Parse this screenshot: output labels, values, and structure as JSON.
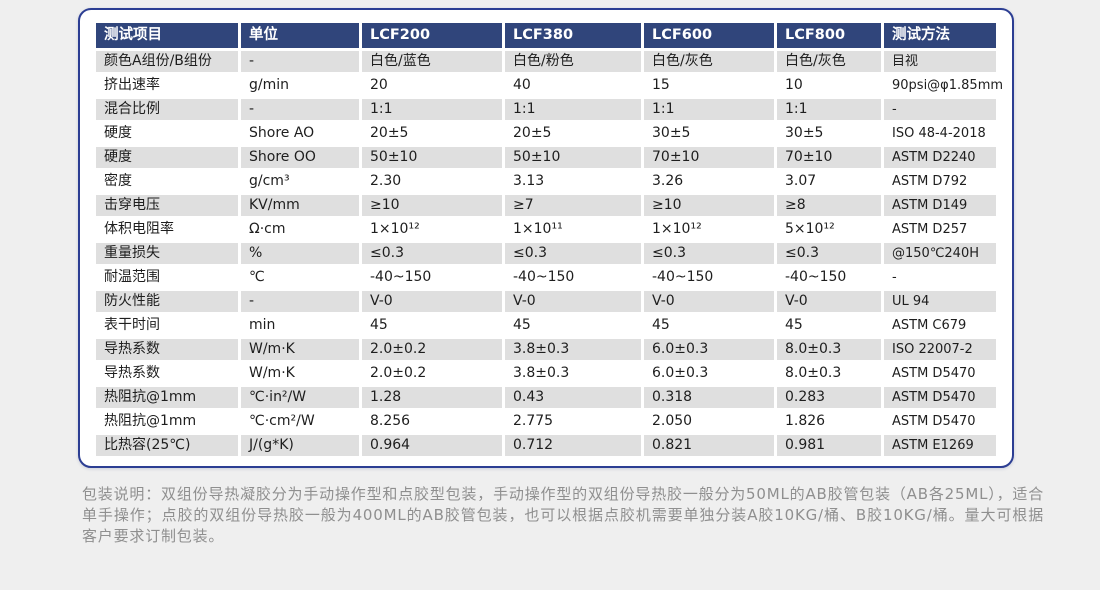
{
  "colors": {
    "page_bg": "#efefef",
    "card_bg": "#ffffff",
    "card_border": "#2c3e93",
    "header_bg": "#30457b",
    "header_text": "#ffffff",
    "row_stripe": "#dfdfdf",
    "body_text": "#1e1e1e",
    "note_text": "#8f8f8f"
  },
  "table": {
    "columns": [
      "测试项目",
      "单位",
      "LCF200",
      "LCF380",
      "LCF600",
      "LCF800",
      "测试方法"
    ],
    "rows": [
      [
        "颜色A组份/B组份",
        "-",
        "白色/蓝色",
        "白色/粉色",
        "白色/灰色",
        "白色/灰色",
        "目视"
      ],
      [
        "挤出速率",
        "g/min",
        "20",
        "40",
        "15",
        "10",
        "90psi@φ1.85mm"
      ],
      [
        "混合比例",
        "-",
        "1:1",
        "1:1",
        "1:1",
        "1:1",
        "-"
      ],
      [
        "硬度",
        "Shore AO",
        "20±5",
        "20±5",
        "30±5",
        "30±5",
        "ISO 48-4-2018"
      ],
      [
        "硬度",
        "Shore OO",
        "50±10",
        "50±10",
        "70±10",
        "70±10",
        "ASTM D2240"
      ],
      [
        "密度",
        "g/cm³",
        "2.30",
        "3.13",
        "3.26",
        "3.07",
        "ASTM D792"
      ],
      [
        "击穿电压",
        "KV/mm",
        "≥10",
        "≥7",
        "≥10",
        "≥8",
        "ASTM D149"
      ],
      [
        "体积电阻率",
        "Ω·cm",
        "1×10¹²",
        "1×10¹¹",
        "1×10¹²",
        "5×10¹²",
        "ASTM D257"
      ],
      [
        "重量损失",
        "%",
        "≤0.3",
        "≤0.3",
        "≤0.3",
        "≤0.3",
        "@150℃240H"
      ],
      [
        "耐温范围",
        "℃",
        "-40~150",
        "-40~150",
        "-40~150",
        "-40~150",
        "-"
      ],
      [
        "防火性能",
        "-",
        "V-0",
        "V-0",
        "V-0",
        "V-0",
        "UL 94"
      ],
      [
        "表干时间",
        "min",
        "45",
        "45",
        "45",
        "45",
        "ASTM C679"
      ],
      [
        "导热系数",
        "W/m·K",
        "2.0±0.2",
        "3.8±0.3",
        "6.0±0.3",
        "8.0±0.3",
        "ISO 22007-2"
      ],
      [
        "导热系数",
        "W/m·K",
        "2.0±0.2",
        "3.8±0.3",
        "6.0±0.3",
        "8.0±0.3",
        "ASTM D5470"
      ],
      [
        "热阻抗@1mm",
        "℃·in²/W",
        "1.28",
        "0.43",
        "0.318",
        "0.283",
        "ASTM D5470"
      ],
      [
        "热阻抗@1mm",
        "℃·cm²/W",
        "8.256",
        "2.775",
        "2.050",
        "1.826",
        "ASTM D5470"
      ],
      [
        "比热容(25℃)",
        "J/(g*K)",
        "0.964",
        "0.712",
        "0.821",
        "0.981",
        "ASTM E1269"
      ]
    ]
  },
  "footer": {
    "note": "包装说明：双组份导热凝胶分为手动操作型和点胶型包装，手动操作型的双组份导热胶一般分为50ML的AB胶管包装（AB各25ML），适合单手操作；点胶的双组份导热胶一般为400ML的AB胶管包装，也可以根据点胶机需要单独分装A胶10KG/桶、B胶10KG/桶。量大可根据客户要求订制包装。"
  }
}
